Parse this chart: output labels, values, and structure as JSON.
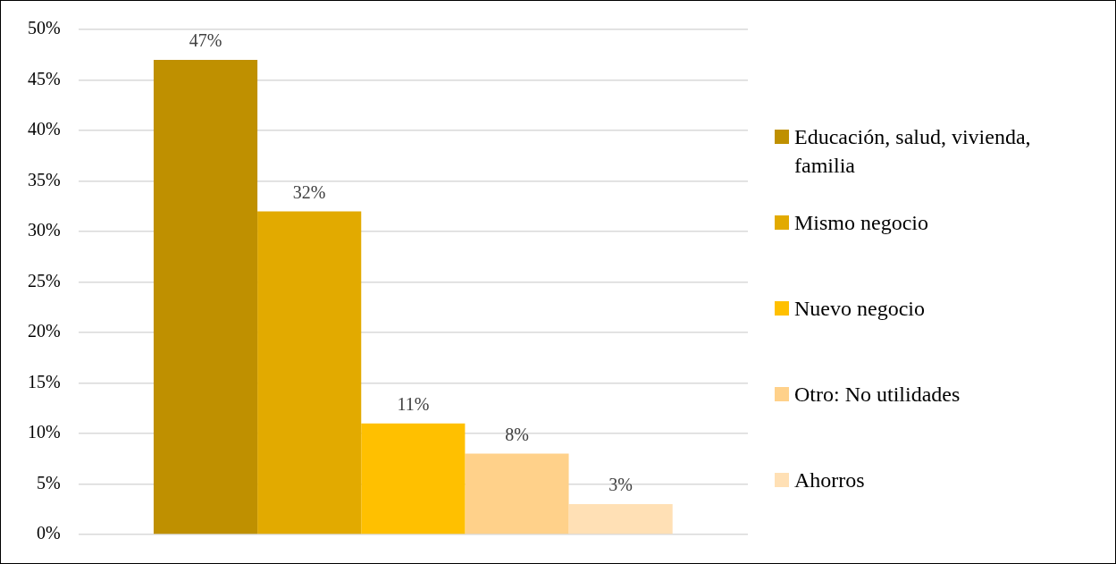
{
  "chart_data": {
    "type": "bar",
    "categories": [
      null
    ],
    "series": [
      {
        "name": "Educación, salud, vivienda, familia",
        "color": "#bf9000",
        "values": [
          47
        ],
        "value_labels": [
          "47%"
        ]
      },
      {
        "name": "Mismo negocio",
        "color": "#e2aa00",
        "values": [
          32
        ],
        "value_labels": [
          "32%"
        ]
      },
      {
        "name": "Nuevo negocio",
        "color": "#ffc000",
        "values": [
          11
        ],
        "value_labels": [
          "11%"
        ]
      },
      {
        "name": "Otro: No utilidades",
        "color": "#ffd18a",
        "values": [
          8
        ],
        "value_labels": [
          "8%"
        ]
      },
      {
        "name": "Ahorros",
        "color": "#ffe0b5",
        "values": [
          3
        ],
        "value_labels": [
          "3%"
        ]
      }
    ],
    "ylim": [
      0,
      50
    ],
    "yticks": [
      {
        "value": 0,
        "label": "0%"
      },
      {
        "value": 5,
        "label": "5%"
      },
      {
        "value": 10,
        "label": "10%"
      },
      {
        "value": 15,
        "label": "15%"
      },
      {
        "value": 20,
        "label": "20%"
      },
      {
        "value": 25,
        "label": "25%"
      },
      {
        "value": 30,
        "label": "30%"
      },
      {
        "value": 35,
        "label": "35%"
      },
      {
        "value": 40,
        "label": "40%"
      },
      {
        "value": 45,
        "label": "45%"
      },
      {
        "value": 50,
        "label": "50%"
      }
    ],
    "grid": "y",
    "legend": "right"
  }
}
